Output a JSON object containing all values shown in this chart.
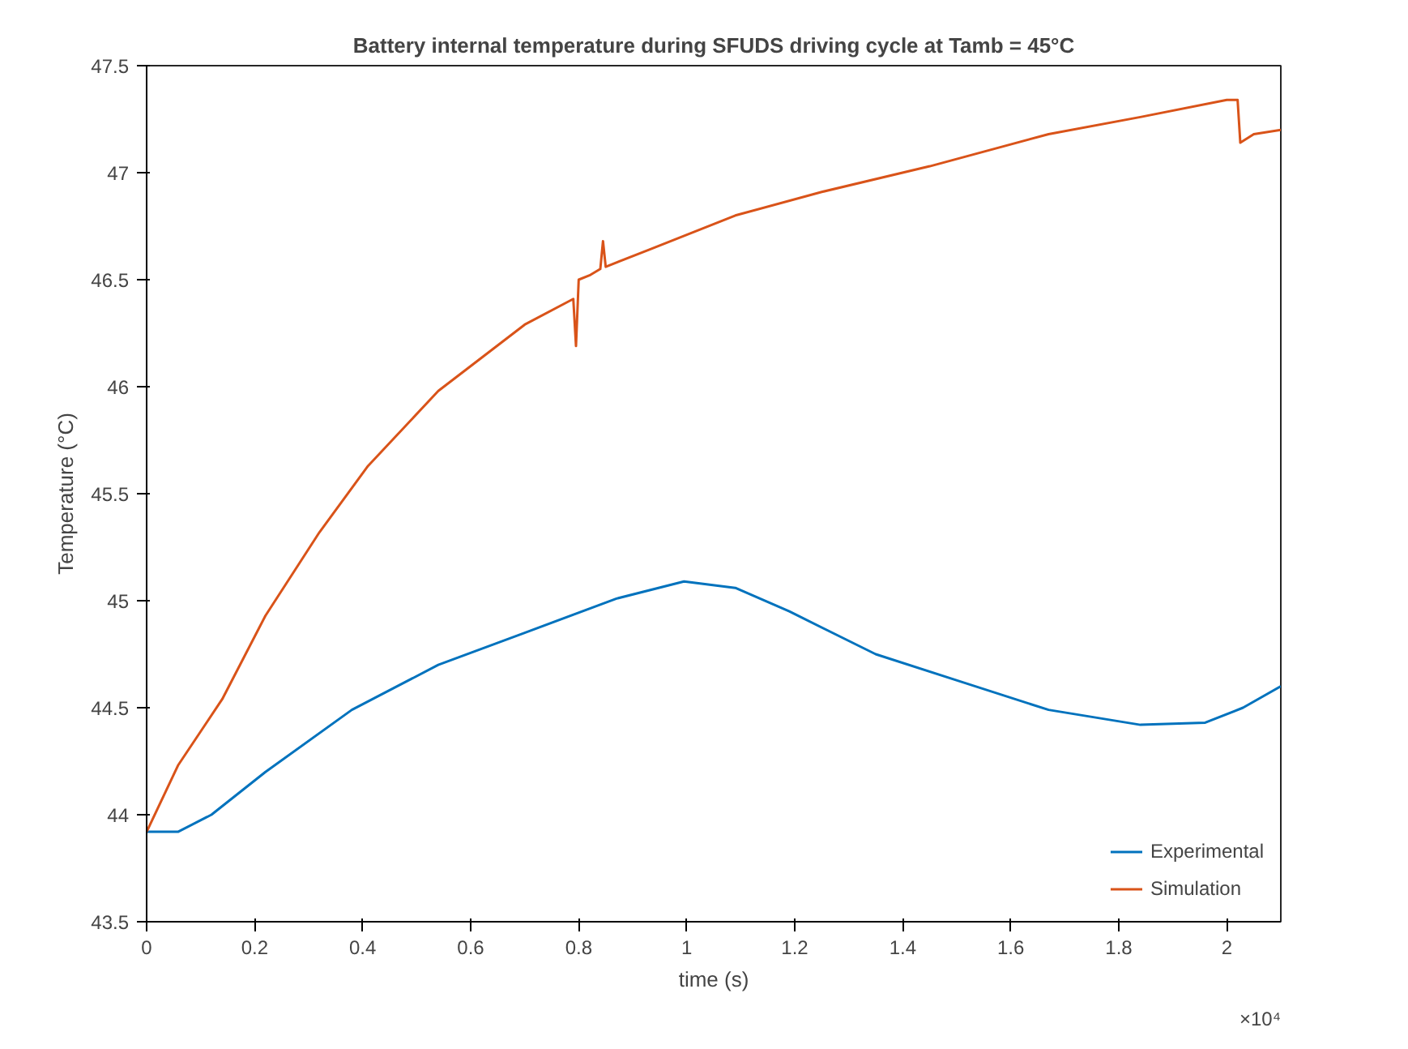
{
  "chart_data": {
    "type": "line",
    "title": "Battery internal temperature during SFUDS driving cycle at Tamb = 45°C",
    "xlabel": "time (s)",
    "ylabel": "Temperature (°C)",
    "annotations": [
      "×10⁴"
    ],
    "xlim": [
      0,
      2.1
    ],
    "xticks": [
      0,
      0.2,
      0.4,
      0.6,
      0.8,
      1,
      1.2,
      1.4,
      1.6,
      1.8,
      2
    ],
    "ylim": [
      43.5,
      47.5
    ],
    "yticks": [
      43.5,
      44,
      44.5,
      45,
      45.5,
      46,
      46.5,
      47,
      47.5
    ],
    "grid": false,
    "legend": "bottom right",
    "line_style": "solid",
    "marker": "none",
    "series": [
      {
        "name": "Experimental",
        "color": "#0072bd",
        "x": [
          0,
          0.058,
          0.12,
          0.22,
          0.38,
          0.54,
          0.7,
          0.87,
          0.995,
          1.09,
          1.19,
          1.35,
          1.51,
          1.67,
          1.84,
          1.96,
          2.03,
          2.1
        ],
        "values": [
          43.92,
          43.92,
          44.0,
          44.2,
          44.49,
          44.7,
          44.85,
          45.01,
          45.09,
          45.06,
          44.95,
          44.75,
          44.62,
          44.49,
          44.42,
          44.43,
          44.5,
          44.6
        ]
      },
      {
        "name": "Simulation",
        "color": "#d95319",
        "x": [
          0,
          0.058,
          0.14,
          0.22,
          0.32,
          0.41,
          0.54,
          0.7,
          0.79,
          0.795,
          0.8,
          0.82,
          0.84,
          0.845,
          0.85,
          0.93,
          1.09,
          1.25,
          1.45,
          1.67,
          1.84,
          2.0,
          2.02,
          2.025,
          2.05,
          2.1
        ],
        "values": [
          43.92,
          44.23,
          44.54,
          44.93,
          45.32,
          45.63,
          45.98,
          46.29,
          46.41,
          46.19,
          46.5,
          46.52,
          46.55,
          46.68,
          46.56,
          46.64,
          46.8,
          46.91,
          47.03,
          47.18,
          47.26,
          47.34,
          47.34,
          47.14,
          47.18,
          47.2
        ]
      }
    ]
  }
}
